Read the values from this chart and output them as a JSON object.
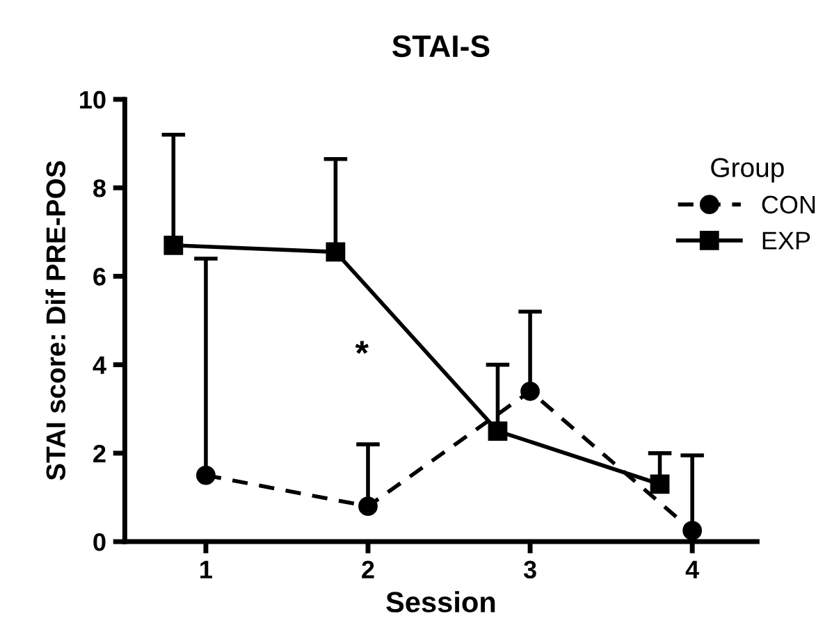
{
  "chart_data": {
    "type": "line",
    "title": "STAI-S",
    "xlabel": "Session",
    "ylabel": "STAI score: Dif PRE-POS",
    "legend_title": "Group",
    "xlim": [
      0.5,
      4.4
    ],
    "xticks": [
      1,
      2,
      3,
      4
    ],
    "ylim": [
      0,
      10
    ],
    "yticks": [
      0,
      2,
      4,
      6,
      8,
      10
    ],
    "grid": false,
    "legend": "right",
    "annotations": [
      "*"
    ],
    "series": [
      {
        "name": "CON",
        "color": "#000000",
        "marker": "circle",
        "line_style": "dashed",
        "x": [
          1,
          2,
          3,
          4
        ],
        "values": [
          1.5,
          0.8,
          3.4,
          0.25
        ],
        "errors": [
          [
            1.5,
            6.4
          ],
          [
            0.8,
            2.2
          ],
          [
            3.4,
            5.2
          ],
          [
            0.25,
            1.95
          ]
        ]
      },
      {
        "name": "EXP",
        "color": "#000000",
        "marker": "square",
        "line_style": "solid",
        "x": [
          0.8,
          1.8,
          2.8,
          3.8
        ],
        "values": [
          6.7,
          6.55,
          2.5,
          1.3
        ],
        "errors": [
          [
            6.7,
            9.2
          ],
          [
            6.55,
            8.65
          ],
          [
            2.5,
            4.0
          ],
          [
            1.3,
            2.0
          ]
        ]
      }
    ]
  }
}
